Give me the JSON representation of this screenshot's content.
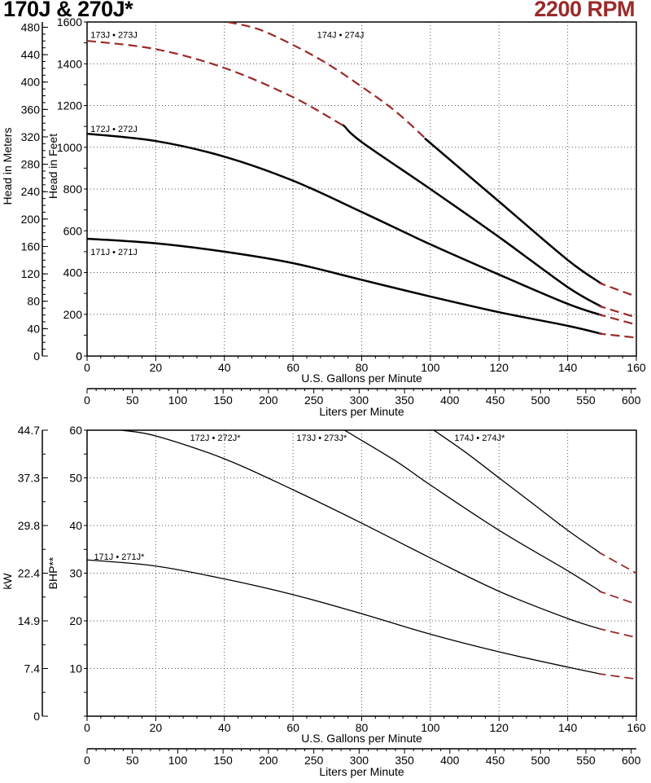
{
  "header": {
    "title": "170J & 270J*",
    "speed": "2200 RPM"
  },
  "colors": {
    "solid": "#000000",
    "dashed": "#9b2a2a",
    "axis": "#000000"
  },
  "chart_data": [
    {
      "type": "line",
      "title": "170J & 270J*",
      "xlabel": "U.S. Gallons per Minute",
      "ylabel": "Head in Feet",
      "secondary_ylabel": "Head in Meters",
      "secondary_xlabel": "Liters per Minute",
      "xlim": [
        0,
        160
      ],
      "ylim": [
        0,
        1600
      ],
      "xticks": [
        0,
        20,
        40,
        60,
        80,
        100,
        120,
        140,
        160
      ],
      "yticks": [
        0,
        200,
        400,
        600,
        800,
        1000,
        1200,
        1400,
        1600
      ],
      "meter_ticks": [
        0,
        40,
        80,
        120,
        160,
        200,
        240,
        280,
        320,
        360,
        400,
        440,
        480
      ],
      "liter_ticks": [
        0,
        50,
        100,
        150,
        200,
        250,
        300,
        350,
        400,
        450,
        500,
        550,
        600
      ],
      "grid": true,
      "series": [
        {
          "name": "171J • 271J",
          "label_at": [
            1,
            500
          ],
          "points": [
            [
              0,
              562
            ],
            [
              20,
              540
            ],
            [
              40,
              500
            ],
            [
              60,
              445
            ],
            [
              80,
              365
            ],
            [
              100,
              285
            ],
            [
              120,
              210
            ],
            [
              140,
              145
            ],
            [
              150,
              106
            ],
            [
              160,
              88
            ]
          ],
          "solid_range": [
            0,
            150
          ]
        },
        {
          "name": "172J • 272J",
          "label_at": [
            1,
            1088
          ],
          "points": [
            [
              0,
              1065
            ],
            [
              20,
              1030
            ],
            [
              40,
              955
            ],
            [
              60,
              840
            ],
            [
              80,
              690
            ],
            [
              100,
              535
            ],
            [
              120,
              390
            ],
            [
              140,
              250
            ],
            [
              150,
              195
            ],
            [
              160,
              150
            ]
          ],
          "solid_range": [
            0,
            150
          ]
        },
        {
          "name": "173J • 273J",
          "label_at": [
            1,
            1540
          ],
          "points": [
            [
              0,
              1510
            ],
            [
              20,
              1470
            ],
            [
              40,
              1380
            ],
            [
              60,
              1240
            ],
            [
              75,
              1100
            ],
            [
              80,
              1025
            ],
            [
              100,
              800
            ],
            [
              120,
              570
            ],
            [
              140,
              330
            ],
            [
              150,
              235
            ],
            [
              160,
              185
            ]
          ],
          "solid_range": [
            75,
            150
          ]
        },
        {
          "name": "174J • 274J",
          "label_at": [
            67,
            1540
          ],
          "points": [
            [
              41,
              1600
            ],
            [
              50,
              1565
            ],
            [
              60,
              1490
            ],
            [
              70,
              1400
            ],
            [
              80,
              1290
            ],
            [
              90,
              1170
            ],
            [
              100,
              1020
            ],
            [
              120,
              740
            ],
            [
              140,
              460
            ],
            [
              150,
              345
            ],
            [
              160,
              285
            ]
          ],
          "solid_range": [
            100,
            150
          ]
        }
      ]
    },
    {
      "type": "line",
      "xlabel": "U.S. Gallons per Minute",
      "ylabel": "BHP**",
      "secondary_ylabel": "kW",
      "secondary_xlabel": "Liters per Minute",
      "xlim": [
        0,
        160
      ],
      "ylim": [
        0,
        60
      ],
      "xticks": [
        0,
        20,
        40,
        60,
        80,
        100,
        120,
        140,
        160
      ],
      "yticks": [
        10,
        20,
        30,
        40,
        50,
        60
      ],
      "kw_ticks": [
        "0",
        "7.4",
        "14.9",
        "22.4",
        "29.8",
        "37.3",
        "44.7"
      ],
      "liter_ticks": [
        0,
        50,
        100,
        150,
        200,
        250,
        300,
        350,
        400,
        450,
        500,
        550,
        600
      ],
      "grid": true,
      "series": [
        {
          "name": "171J • 271J*",
          "label_at": [
            2,
            33.5
          ],
          "points": [
            [
              0,
              32.8
            ],
            [
              20,
              31.5
            ],
            [
              40,
              28.8
            ],
            [
              60,
              25.5
            ],
            [
              80,
              21.5
            ],
            [
              100,
              17.2
            ],
            [
              120,
              13.5
            ],
            [
              140,
              10.3
            ],
            [
              150,
              8.8
            ],
            [
              160,
              7.8
            ]
          ],
          "solid_range": [
            0,
            150
          ]
        },
        {
          "name": "172J • 272J*",
          "label_at": [
            30,
            58.5
          ],
          "points": [
            [
              10,
              60
            ],
            [
              20,
              58.8
            ],
            [
              40,
              54
            ],
            [
              60,
              47.5
            ],
            [
              80,
              40.5
            ],
            [
              100,
              33.2
            ],
            [
              120,
              26.2
            ],
            [
              140,
              20.5
            ],
            [
              150,
              18.2
            ],
            [
              160,
              16.5
            ]
          ],
          "solid_range": [
            10,
            150
          ]
        },
        {
          "name": "173J • 273J*",
          "label_at": [
            61,
            58.5
          ],
          "points": [
            [
              75,
              60
            ],
            [
              90,
              53.5
            ],
            [
              100,
              48.5
            ],
            [
              120,
              39
            ],
            [
              140,
              30.5
            ],
            [
              150,
              26
            ],
            [
              160,
              23.5
            ]
          ],
          "solid_range": [
            75,
            150
          ]
        },
        {
          "name": "174J • 274J*",
          "label_at": [
            107,
            58.5
          ],
          "points": [
            [
              101,
              60
            ],
            [
              110,
              55.5
            ],
            [
              120,
              50
            ],
            [
              130,
              44.5
            ],
            [
              140,
              39
            ],
            [
              150,
              34
            ],
            [
              160,
              30
            ]
          ],
          "solid_range": [
            101,
            150
          ]
        }
      ]
    }
  ]
}
